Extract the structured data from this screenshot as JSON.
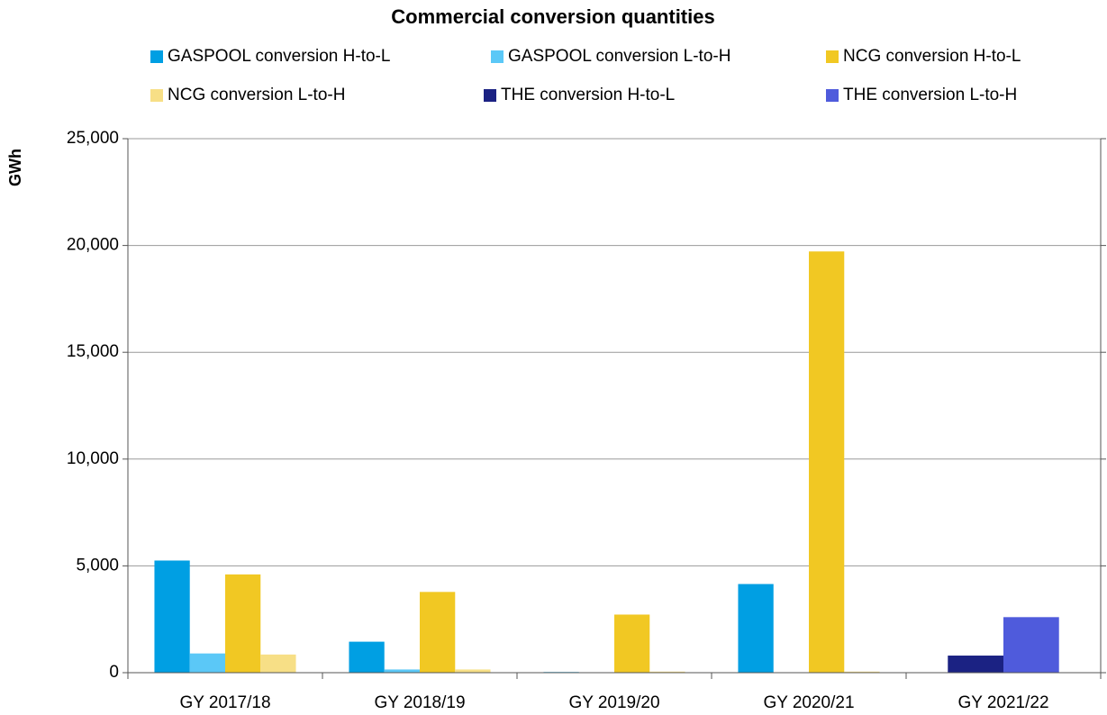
{
  "chart_data": {
    "type": "bar",
    "title": "Commercial conversion quantities",
    "y_label": "GWh",
    "categories": [
      "GY 2017/18",
      "GY 2018/19",
      "GY 2019/20",
      "GY 2020/21",
      "GY 2021/22"
    ],
    "series": [
      {
        "name": "GASPOOL conversion H-to-L",
        "color": "#009fe3",
        "values": [
          5250,
          1450,
          30,
          4150,
          null
        ]
      },
      {
        "name": "GASPOOL conversion L-to-H",
        "color": "#5bc8f7",
        "values": [
          900,
          150,
          0,
          0,
          null
        ]
      },
      {
        "name": "NCG conversion H-to-L",
        "color": "#f1c823",
        "values": [
          4600,
          3780,
          2720,
          19720,
          null
        ]
      },
      {
        "name": "NCG conversion L-to-H",
        "color": "#f7df86",
        "values": [
          850,
          150,
          50,
          50,
          null
        ]
      },
      {
        "name": "THE conversion H-to-L",
        "color": "#1b2283",
        "values": [
          null,
          null,
          null,
          null,
          800
        ]
      },
      {
        "name": "THE conversion L-to-H",
        "color": "#4f5bdc",
        "values": [
          null,
          null,
          null,
          null,
          2600
        ]
      }
    ],
    "ylim": [
      0,
      25000
    ],
    "yticks": [
      0,
      {
        "value": 5000,
        "label": "5,000"
      },
      {
        "value": 10000,
        "label": "10,000"
      },
      {
        "value": 15000,
        "label": "15,000"
      },
      {
        "value": 20000,
        "label": "20,000"
      },
      {
        "value": 25000,
        "label": "25,000"
      }
    ],
    "grid": true,
    "legend": "top"
  }
}
